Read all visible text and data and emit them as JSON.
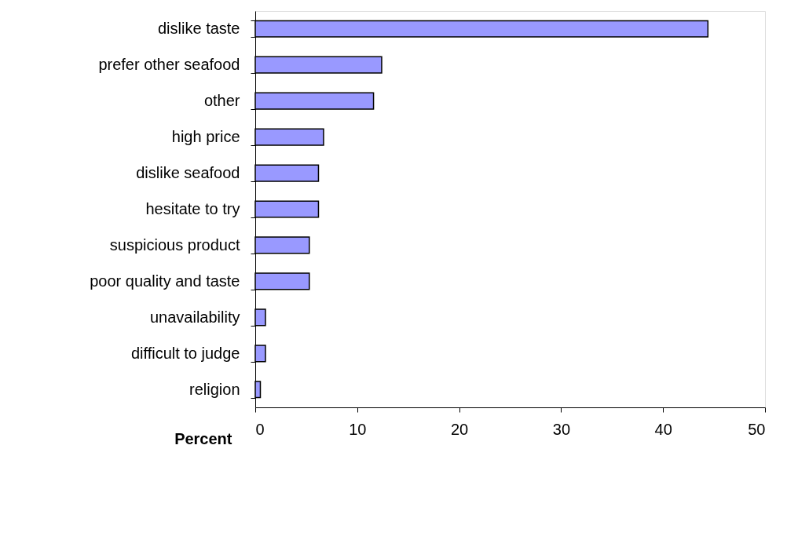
{
  "chart_data": {
    "type": "bar",
    "orientation": "horizontal",
    "xlabel": "Percent",
    "categories": [
      "dislike taste",
      "prefer other seafood",
      "other",
      "high price",
      "dislike seafood",
      "hesitate to try",
      "suspicious product",
      "poor quality and taste",
      "unavailability",
      "difficult to judge",
      "religion"
    ],
    "values": [
      44.4,
      12.4,
      11.6,
      6.7,
      6.2,
      6.2,
      5.3,
      5.3,
      1.0,
      1.0,
      0.5
    ],
    "color": "#9999ff",
    "xlim": [
      0,
      50
    ],
    "xticks": [
      0,
      10,
      20,
      30,
      40,
      50
    ],
    "grid": false
  }
}
